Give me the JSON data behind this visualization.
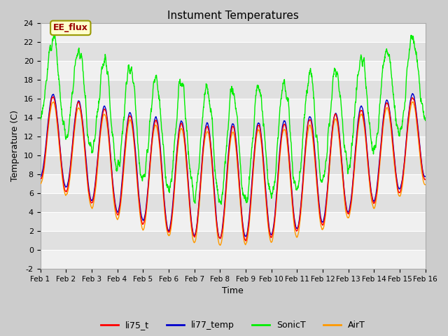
{
  "title": "Instument Temperatures",
  "xlabel": "Time",
  "ylabel": "Temperature (C)",
  "ylim": [
    -2,
    24
  ],
  "xlim": [
    0,
    15
  ],
  "xtick_labels": [
    "Feb 1",
    "Feb 2",
    "Feb 3",
    "Feb 4",
    "Feb 5",
    "Feb 6",
    "Feb 7",
    "Feb 8",
    "Feb 9",
    "Feb 10",
    "Feb 11",
    "Feb 12",
    "Feb 13",
    "Feb 14",
    "Feb 15",
    "Feb 16"
  ],
  "ytick_values": [
    -2,
    0,
    2,
    4,
    6,
    8,
    10,
    12,
    14,
    16,
    18,
    20,
    22,
    24
  ],
  "colors": {
    "li75_t": "#ff0000",
    "li77_temp": "#0000cc",
    "SonicT": "#00ee00",
    "AirT": "#ff9900"
  },
  "annotation_text": "EE_flux",
  "annotation_bg": "#ffffcc",
  "annotation_edge": "#999900",
  "line_width": 1.0,
  "figsize": [
    6.4,
    4.8
  ],
  "dpi": 100,
  "fig_bg": "#cccccc",
  "plot_bg": "#ffffff",
  "stripe_colors": [
    "#f0f0f0",
    "#e0e0e0"
  ]
}
